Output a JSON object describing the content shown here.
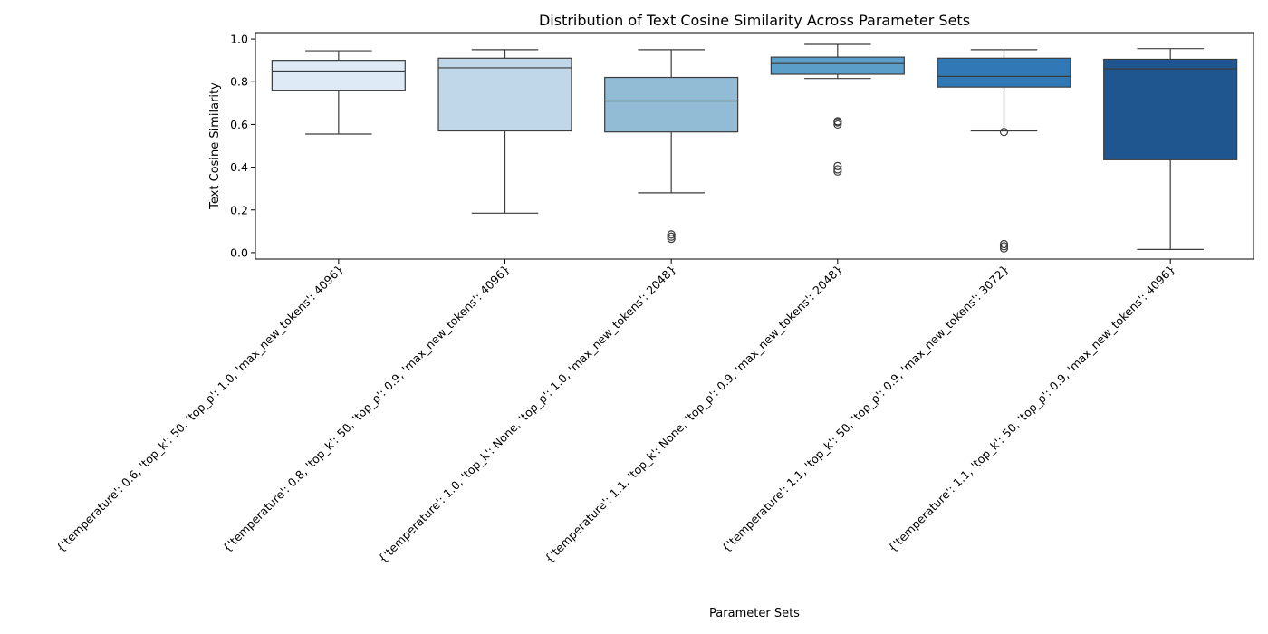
{
  "chart_data": {
    "type": "box",
    "title": "Distribution of Text Cosine Similarity Across Parameter Sets",
    "xlabel": "Parameter Sets",
    "ylabel": "Text Cosine Similarity",
    "ylim": [
      -0.03,
      1.03
    ],
    "yticks": [
      0.0,
      0.2,
      0.4,
      0.6,
      0.8,
      1.0
    ],
    "ytick_labels": [
      "0.0",
      "0.2",
      "0.4",
      "0.6",
      "0.8",
      "1.0"
    ],
    "grid": false,
    "legend": "none",
    "categories": [
      "{'temperature': 0.6, 'top_k': 50, 'top_p': 1.0, 'max_new_tokens': 4096}",
      "{'temperature': 0.8, 'top_k': 50, 'top_p': 0.9, 'max_new_tokens': 4096}",
      "{'temperature': 1.0, 'top_k': None, 'top_p': 1.0, 'max_new_tokens': 2048}",
      "{'temperature': 1.1, 'top_k': None, 'top_p': 0.9, 'max_new_tokens': 2048}",
      "{'temperature': 1.1, 'top_k': 50, 'top_p': 0.9, 'max_new_tokens': 3072}",
      "{'temperature': 1.1, 'top_k': 50, 'top_p': 0.9, 'max_new_tokens': 4096}"
    ],
    "boxes": [
      {
        "whisker_low": 0.555,
        "q1": 0.76,
        "median": 0.85,
        "q3": 0.9,
        "whisker_high": 0.945,
        "outliers": [],
        "color": "#deebf7"
      },
      {
        "whisker_low": 0.185,
        "q1": 0.57,
        "median": 0.865,
        "q3": 0.91,
        "whisker_high": 0.95,
        "outliers": [],
        "color": "#bfd7e9"
      },
      {
        "whisker_low": 0.28,
        "q1": 0.565,
        "median": 0.71,
        "q3": 0.82,
        "whisker_high": 0.95,
        "outliers": [
          0.065,
          0.075,
          0.085
        ],
        "color": "#92bcd6"
      },
      {
        "whisker_low": 0.815,
        "q1": 0.835,
        "median": 0.885,
        "q3": 0.915,
        "whisker_high": 0.975,
        "outliers": [
          0.38,
          0.39,
          0.405,
          0.6,
          0.61,
          0.615
        ],
        "color": "#5b9ec9"
      },
      {
        "whisker_low": 0.57,
        "q1": 0.775,
        "median": 0.825,
        "q3": 0.91,
        "whisker_high": 0.95,
        "outliers": [
          0.02,
          0.03,
          0.04,
          0.565
        ],
        "color": "#3179b6"
      },
      {
        "whisker_low": 0.015,
        "q1": 0.435,
        "median": 0.86,
        "q3": 0.905,
        "whisker_high": 0.955,
        "outliers": [],
        "color": "#1f5690"
      }
    ]
  }
}
